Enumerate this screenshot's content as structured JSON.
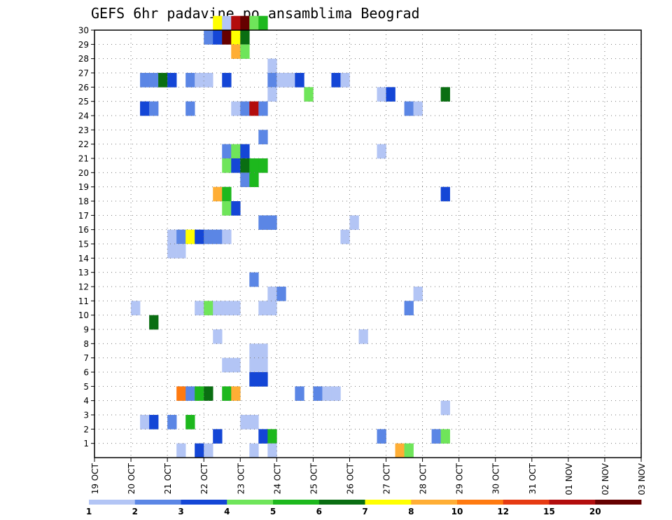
{
  "chart_data": {
    "type": "heatmap",
    "title": "GEFS 6hr padavine po ansamblima Beograd",
    "x_ticks": [
      "19 OCT",
      "20 OCT",
      "21 OCT",
      "22 OCT",
      "23 OCT",
      "24 OCT",
      "25 OCT",
      "26 OCT",
      "27 OCT",
      "28 OCT",
      "29 OCT",
      "30 OCT",
      "31 OCT",
      "01 NOV",
      "02 NOV",
      "03 NOV"
    ],
    "y_ticks": [
      "1",
      "2",
      "3",
      "4",
      "5",
      "6",
      "7",
      "8",
      "9",
      "10",
      "11",
      "12",
      "13",
      "14",
      "15",
      "16",
      "17",
      "18",
      "19",
      "20",
      "21",
      "22",
      "23",
      "24",
      "25",
      "26",
      "27",
      "28",
      "29",
      "30"
    ],
    "x_range_steps": [
      0,
      60
    ],
    "y_range": [
      0,
      30
    ],
    "grid": true,
    "colorbar": {
      "labels": [
        "1",
        "2",
        "3",
        "4",
        "5",
        "6",
        "7",
        "8",
        "10",
        "12",
        "15",
        "20"
      ],
      "colors": [
        "#b3c5f5",
        "#5b86e5",
        "#1446d6",
        "#6fe55a",
        "#1db81d",
        "#0a6e12",
        "#ffff00",
        "#ffae35",
        "#ff7a10",
        "#e63a12",
        "#b30d0d",
        "#660000"
      ]
    },
    "cells": [
      [
        13,
        30,
        6
      ],
      [
        14,
        30,
        0
      ],
      [
        15,
        30,
        10
      ],
      [
        16,
        30,
        11
      ],
      [
        17,
        30,
        3
      ],
      [
        18,
        30,
        4
      ],
      [
        12,
        29,
        1
      ],
      [
        13,
        29,
        2
      ],
      [
        14,
        29,
        11
      ],
      [
        15,
        29,
        6
      ],
      [
        16,
        29,
        5
      ],
      [
        15,
        28,
        7
      ],
      [
        16,
        28,
        3
      ],
      [
        19,
        27,
        0
      ],
      [
        5,
        26,
        1
      ],
      [
        6,
        26,
        1
      ],
      [
        7,
        26,
        5
      ],
      [
        8,
        26,
        2
      ],
      [
        10,
        26,
        1
      ],
      [
        11,
        26,
        0
      ],
      [
        12,
        26,
        0
      ],
      [
        14,
        26,
        2
      ],
      [
        19,
        26,
        1
      ],
      [
        20,
        26,
        0
      ],
      [
        21,
        26,
        0
      ],
      [
        22,
        26,
        2
      ],
      [
        26,
        26,
        2
      ],
      [
        27,
        26,
        0
      ],
      [
        19,
        25,
        0
      ],
      [
        23,
        25,
        3
      ],
      [
        31,
        25,
        0
      ],
      [
        32,
        25,
        2
      ],
      [
        38,
        25,
        5
      ],
      [
        5,
        24,
        2
      ],
      [
        6,
        24,
        1
      ],
      [
        10,
        24,
        1
      ],
      [
        15,
        24,
        0
      ],
      [
        16,
        24,
        1
      ],
      [
        17,
        24,
        10
      ],
      [
        18,
        24,
        1
      ],
      [
        34,
        24,
        1
      ],
      [
        35,
        24,
        0
      ],
      [
        18,
        22,
        1
      ],
      [
        14,
        21,
        1
      ],
      [
        15,
        21,
        3
      ],
      [
        16,
        21,
        2
      ],
      [
        31,
        21,
        0
      ],
      [
        14,
        20,
        3
      ],
      [
        15,
        20,
        2
      ],
      [
        16,
        20,
        5
      ],
      [
        17,
        20,
        4
      ],
      [
        18,
        20,
        4
      ],
      [
        16,
        19,
        1
      ],
      [
        17,
        19,
        4
      ],
      [
        13,
        18,
        7
      ],
      [
        14,
        18,
        4
      ],
      [
        38,
        18,
        2
      ],
      [
        14,
        17,
        3
      ],
      [
        15,
        17,
        2
      ],
      [
        18,
        16,
        1
      ],
      [
        19,
        16,
        1
      ],
      [
        28,
        16,
        0
      ],
      [
        8,
        15,
        0
      ],
      [
        9,
        15,
        1
      ],
      [
        10,
        15,
        6
      ],
      [
        11,
        15,
        2
      ],
      [
        12,
        15,
        1
      ],
      [
        13,
        15,
        1
      ],
      [
        14,
        15,
        0
      ],
      [
        27,
        15,
        0
      ],
      [
        8,
        14,
        0
      ],
      [
        9,
        14,
        0
      ],
      [
        17,
        12,
        1
      ],
      [
        19,
        11,
        0
      ],
      [
        20,
        11,
        1
      ],
      [
        35,
        11,
        0
      ],
      [
        4,
        10,
        0
      ],
      [
        11,
        10,
        0
      ],
      [
        12,
        10,
        3
      ],
      [
        13,
        10,
        0
      ],
      [
        14,
        10,
        0
      ],
      [
        15,
        10,
        0
      ],
      [
        18,
        10,
        0
      ],
      [
        19,
        10,
        0
      ],
      [
        34,
        10,
        1
      ],
      [
        6,
        9,
        5
      ],
      [
        13,
        8,
        0
      ],
      [
        29,
        8,
        0
      ],
      [
        17,
        7,
        0
      ],
      [
        18,
        7,
        0
      ],
      [
        14,
        6,
        0
      ],
      [
        15,
        6,
        0
      ],
      [
        17,
        6,
        0
      ],
      [
        18,
        6,
        0
      ],
      [
        17,
        5,
        2
      ],
      [
        18,
        5,
        2
      ],
      [
        9,
        4,
        8
      ],
      [
        10,
        4,
        1
      ],
      [
        11,
        4,
        4
      ],
      [
        12,
        4,
        5
      ],
      [
        14,
        4,
        4
      ],
      [
        15,
        4,
        7
      ],
      [
        22,
        4,
        1
      ],
      [
        24,
        4,
        1
      ],
      [
        25,
        4,
        0
      ],
      [
        26,
        4,
        0
      ],
      [
        38,
        3,
        0
      ],
      [
        5,
        2,
        0
      ],
      [
        6,
        2,
        2
      ],
      [
        8,
        2,
        1
      ],
      [
        10,
        2,
        4
      ],
      [
        16,
        2,
        0
      ],
      [
        17,
        2,
        0
      ],
      [
        13,
        1,
        2
      ],
      [
        18,
        1,
        2
      ],
      [
        19,
        1,
        4
      ],
      [
        31,
        1,
        1
      ],
      [
        37,
        1,
        1
      ],
      [
        38,
        1,
        3
      ],
      [
        9,
        0,
        0
      ],
      [
        11,
        0,
        2
      ],
      [
        12,
        0,
        0
      ],
      [
        17,
        0,
        0
      ],
      [
        19,
        0,
        0
      ],
      [
        33,
        0,
        7
      ],
      [
        34,
        0,
        3
      ]
    ]
  }
}
